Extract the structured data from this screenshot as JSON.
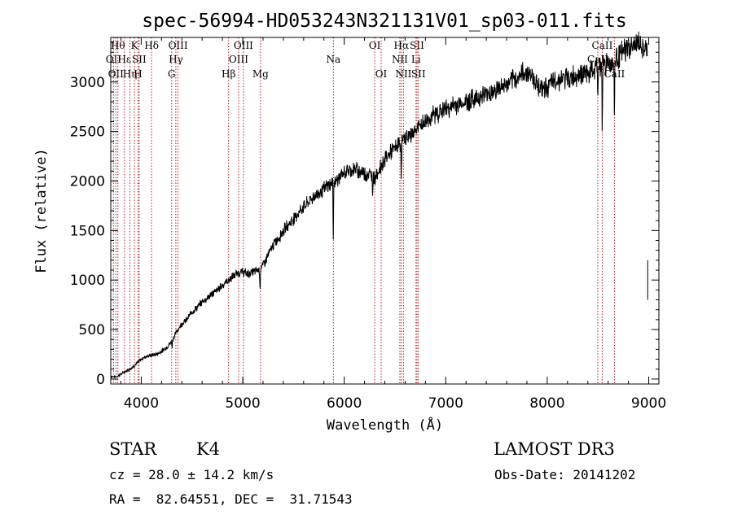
{
  "chart_data": {
    "type": "line",
    "title": "spec-56994-HD053243N321131V01_sp03-011.fits",
    "xlabel": "Wavelength (Å)",
    "ylabel": "Flux (relative)",
    "xlim": [
      3700,
      9100
    ],
    "ylim": [
      -50,
      3450
    ],
    "xticks": [
      4000,
      5000,
      6000,
      7000,
      8000,
      9000
    ],
    "yticks": [
      0,
      500,
      1000,
      1500,
      2000,
      2500,
      3000
    ],
    "spectrum": [
      [
        3700,
        30
      ],
      [
        3750,
        20
      ],
      [
        3800,
        50
      ],
      [
        3850,
        80
      ],
      [
        3900,
        110
      ],
      [
        3950,
        150
      ],
      [
        4000,
        200
      ],
      [
        4050,
        230
      ],
      [
        4100,
        240
      ],
      [
        4150,
        250
      ],
      [
        4200,
        280
      ],
      [
        4250,
        320
      ],
      [
        4300,
        380
      ],
      [
        4350,
        480
      ],
      [
        4400,
        560
      ],
      [
        4450,
        600
      ],
      [
        4500,
        680
      ],
      [
        4550,
        720
      ],
      [
        4600,
        780
      ],
      [
        4650,
        820
      ],
      [
        4700,
        860
      ],
      [
        4750,
        900
      ],
      [
        4800,
        950
      ],
      [
        4850,
        990
      ],
      [
        4900,
        1030
      ],
      [
        4950,
        1070
      ],
      [
        5000,
        1080
      ],
      [
        5050,
        1060
      ],
      [
        5100,
        1080
      ],
      [
        5150,
        1100
      ],
      [
        5200,
        1150
      ],
      [
        5250,
        1250
      ],
      [
        5300,
        1350
      ],
      [
        5350,
        1420
      ],
      [
        5400,
        1500
      ],
      [
        5450,
        1560
      ],
      [
        5500,
        1620
      ],
      [
        5550,
        1680
      ],
      [
        5600,
        1740
      ],
      [
        5650,
        1790
      ],
      [
        5700,
        1840
      ],
      [
        5750,
        1880
      ],
      [
        5800,
        1920
      ],
      [
        5850,
        1960
      ],
      [
        5900,
        1990
      ],
      [
        5950,
        2030
      ],
      [
        6000,
        2080
      ],
      [
        6050,
        2110
      ],
      [
        6100,
        2120
      ],
      [
        6150,
        2100
      ],
      [
        6200,
        2080
      ],
      [
        6250,
        2060
      ],
      [
        6300,
        2040
      ],
      [
        6350,
        2120
      ],
      [
        6400,
        2220
      ],
      [
        6450,
        2280
      ],
      [
        6500,
        2330
      ],
      [
        6550,
        2380
      ],
      [
        6600,
        2430
      ],
      [
        6650,
        2460
      ],
      [
        6700,
        2510
      ],
      [
        6750,
        2560
      ],
      [
        6800,
        2600
      ],
      [
        6850,
        2640
      ],
      [
        6900,
        2680
      ],
      [
        6950,
        2700
      ],
      [
        7000,
        2730
      ],
      [
        7050,
        2740
      ],
      [
        7100,
        2770
      ],
      [
        7150,
        2780
      ],
      [
        7200,
        2800
      ],
      [
        7250,
        2820
      ],
      [
        7300,
        2840
      ],
      [
        7350,
        2860
      ],
      [
        7400,
        2880
      ],
      [
        7450,
        2900
      ],
      [
        7500,
        2920
      ],
      [
        7550,
        2950
      ],
      [
        7600,
        2970
      ],
      [
        7650,
        3000
      ],
      [
        7700,
        3040
      ],
      [
        7750,
        3080
      ],
      [
        7800,
        3100
      ],
      [
        7850,
        3070
      ],
      [
        7900,
        2980
      ],
      [
        7950,
        2930
      ],
      [
        8000,
        2950
      ],
      [
        8050,
        2990
      ],
      [
        8100,
        3020
      ],
      [
        8150,
        3030
      ],
      [
        8200,
        3040
      ],
      [
        8250,
        3050
      ],
      [
        8300,
        3070
      ],
      [
        8350,
        3090
      ],
      [
        8400,
        3080
      ],
      [
        8450,
        3110
      ],
      [
        8500,
        3150
      ],
      [
        8550,
        3180
      ],
      [
        8600,
        3190
      ],
      [
        8650,
        3200
      ],
      [
        8700,
        3260
      ],
      [
        8750,
        3310
      ],
      [
        8800,
        3340
      ],
      [
        8850,
        3370
      ],
      [
        8900,
        3400
      ],
      [
        8950,
        3320
      ],
      [
        8990,
        3300
      ]
    ],
    "absorption_features": [
      {
        "x": 4305,
        "depth": 60
      },
      {
        "x": 5170,
        "depth": 230
      },
      {
        "x": 5892,
        "depth": 540
      },
      {
        "x": 6280,
        "depth": 150
      },
      {
        "x": 6563,
        "depth": 380
      },
      {
        "x": 8498,
        "depth": 280
      },
      {
        "x": 8542,
        "depth": 750
      },
      {
        "x": 8662,
        "depth": 560
      }
    ],
    "line_markers": [
      {
        "x": 3727,
        "row": 1,
        "label": "OII"
      },
      {
        "x": 3750,
        "row": 2,
        "label": "OII"
      },
      {
        "x": 3770,
        "row": 0,
        "label": "Hθ"
      },
      {
        "x": 3835,
        "row": 1,
        "label": "Hε"
      },
      {
        "x": 3889,
        "row": 2,
        "label": "Hη"
      },
      {
        "x": 3934,
        "row": 0,
        "label": "K"
      },
      {
        "x": 3969,
        "row": 2,
        "label": "H"
      },
      {
        "x": 3980,
        "row": 1,
        "label": "SII"
      },
      {
        "x": 4102,
        "row": 0,
        "label": "Hδ"
      },
      {
        "x": 4300,
        "row": 2,
        "label": "G"
      },
      {
        "x": 4341,
        "row": 1,
        "label": "Hγ"
      },
      {
        "x": 4363,
        "row": 0,
        "label": "OIII"
      },
      {
        "x": 4861,
        "row": 2,
        "label": "Hβ"
      },
      {
        "x": 4959,
        "row": 1,
        "label": "OIII"
      },
      {
        "x": 5007,
        "row": 0,
        "label": "OIII"
      },
      {
        "x": 5175,
        "row": 2,
        "label": "Mg"
      },
      {
        "x": 5893,
        "row": 1,
        "label": "Na"
      },
      {
        "x": 6300,
        "row": 0,
        "label": "OI"
      },
      {
        "x": 6364,
        "row": 2,
        "label": "OI"
      },
      {
        "x": 6548,
        "row": 1,
        "label": "NII"
      },
      {
        "x": 6563,
        "row": 0,
        "label": "Hα"
      },
      {
        "x": 6584,
        "row": 2,
        "label": "NII"
      },
      {
        "x": 6707,
        "row": 1,
        "label": "Li"
      },
      {
        "x": 6717,
        "row": 0,
        "label": "SII"
      },
      {
        "x": 6731,
        "row": 2,
        "label": "SII"
      },
      {
        "x": 8498,
        "row": 1,
        "label": "CaII"
      },
      {
        "x": 8542,
        "row": 0,
        "label": "CaII"
      },
      {
        "x": 8662,
        "row": 2,
        "label": "CaII"
      }
    ]
  },
  "info": {
    "star_class": "STAR",
    "subclass": "K4",
    "survey": "LAMOST DR3",
    "cz": "cz = 28.0 ± 14.2 km/s",
    "obs_date": "Obs-Date: 20141202",
    "coords": "RA =  82.64551, DEC =  31.71543"
  },
  "colors": {
    "line_marker": "#b22222",
    "spectrum": "#000000"
  }
}
